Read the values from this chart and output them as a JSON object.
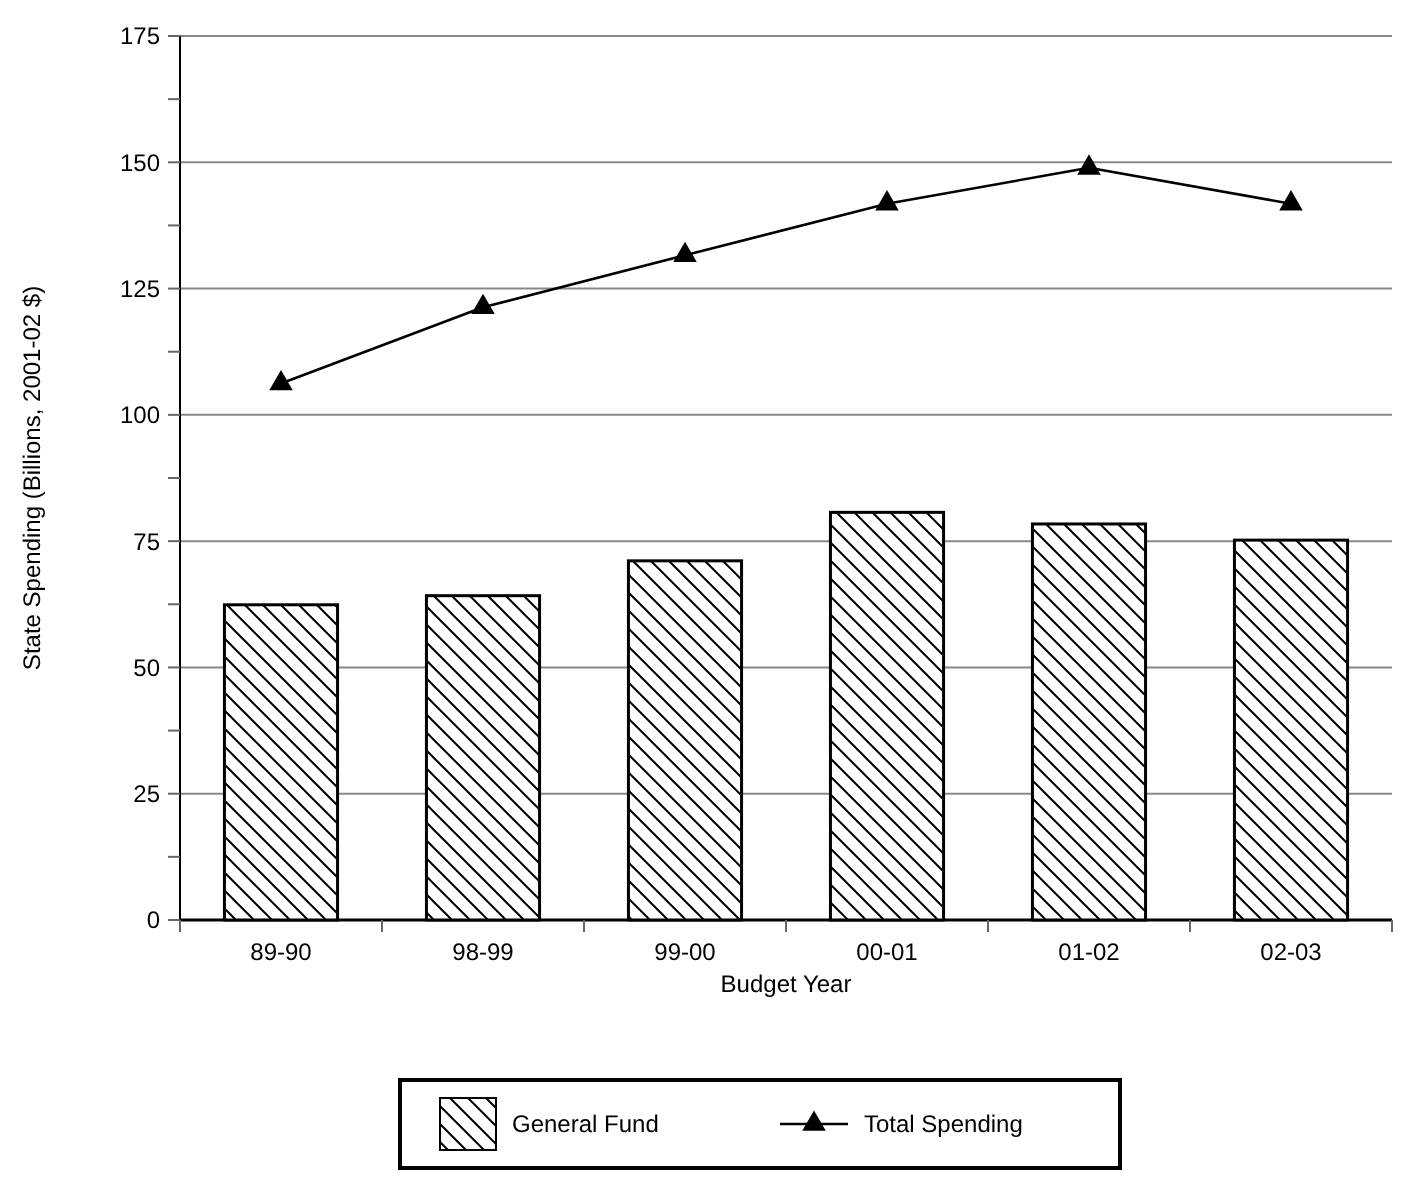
{
  "chart_data": {
    "type": "bar",
    "xlabel": "Budget Year",
    "ylabel": "State Spending (Billions, 2001-02 $)",
    "categories": [
      "89-90",
      "98-99",
      "99-00",
      "00-01",
      "01-02",
      "02-03"
    ],
    "series": [
      {
        "name": "General Fund",
        "color": "#000000",
        "values": [
          62.4,
          64.2,
          71.1,
          80.7,
          78.4,
          75.2
        ]
      },
      {
        "name": "Total Spending",
        "type": "line",
        "color": "#000000",
        "marker": "triangle",
        "values": [
          106.2,
          121.3,
          131.6,
          141.8,
          148.9,
          141.8
        ]
      }
    ],
    "ylim": [
      0,
      175
    ],
    "yticks": [
      0,
      {
        "value": 12.5,
        "label": null
      },
      25,
      {
        "value": 37.5,
        "label": null
      },
      50,
      {
        "value": 62.5,
        "label": null
      },
      75,
      {
        "value": 87.5,
        "label": null
      },
      100,
      {
        "value": 112.5,
        "label": null
      },
      125,
      {
        "value": 137.5,
        "label": null
      },
      150,
      {
        "value": 162.5,
        "label": null
      },
      175
    ],
    "grid": "y",
    "legend": "bottom"
  }
}
